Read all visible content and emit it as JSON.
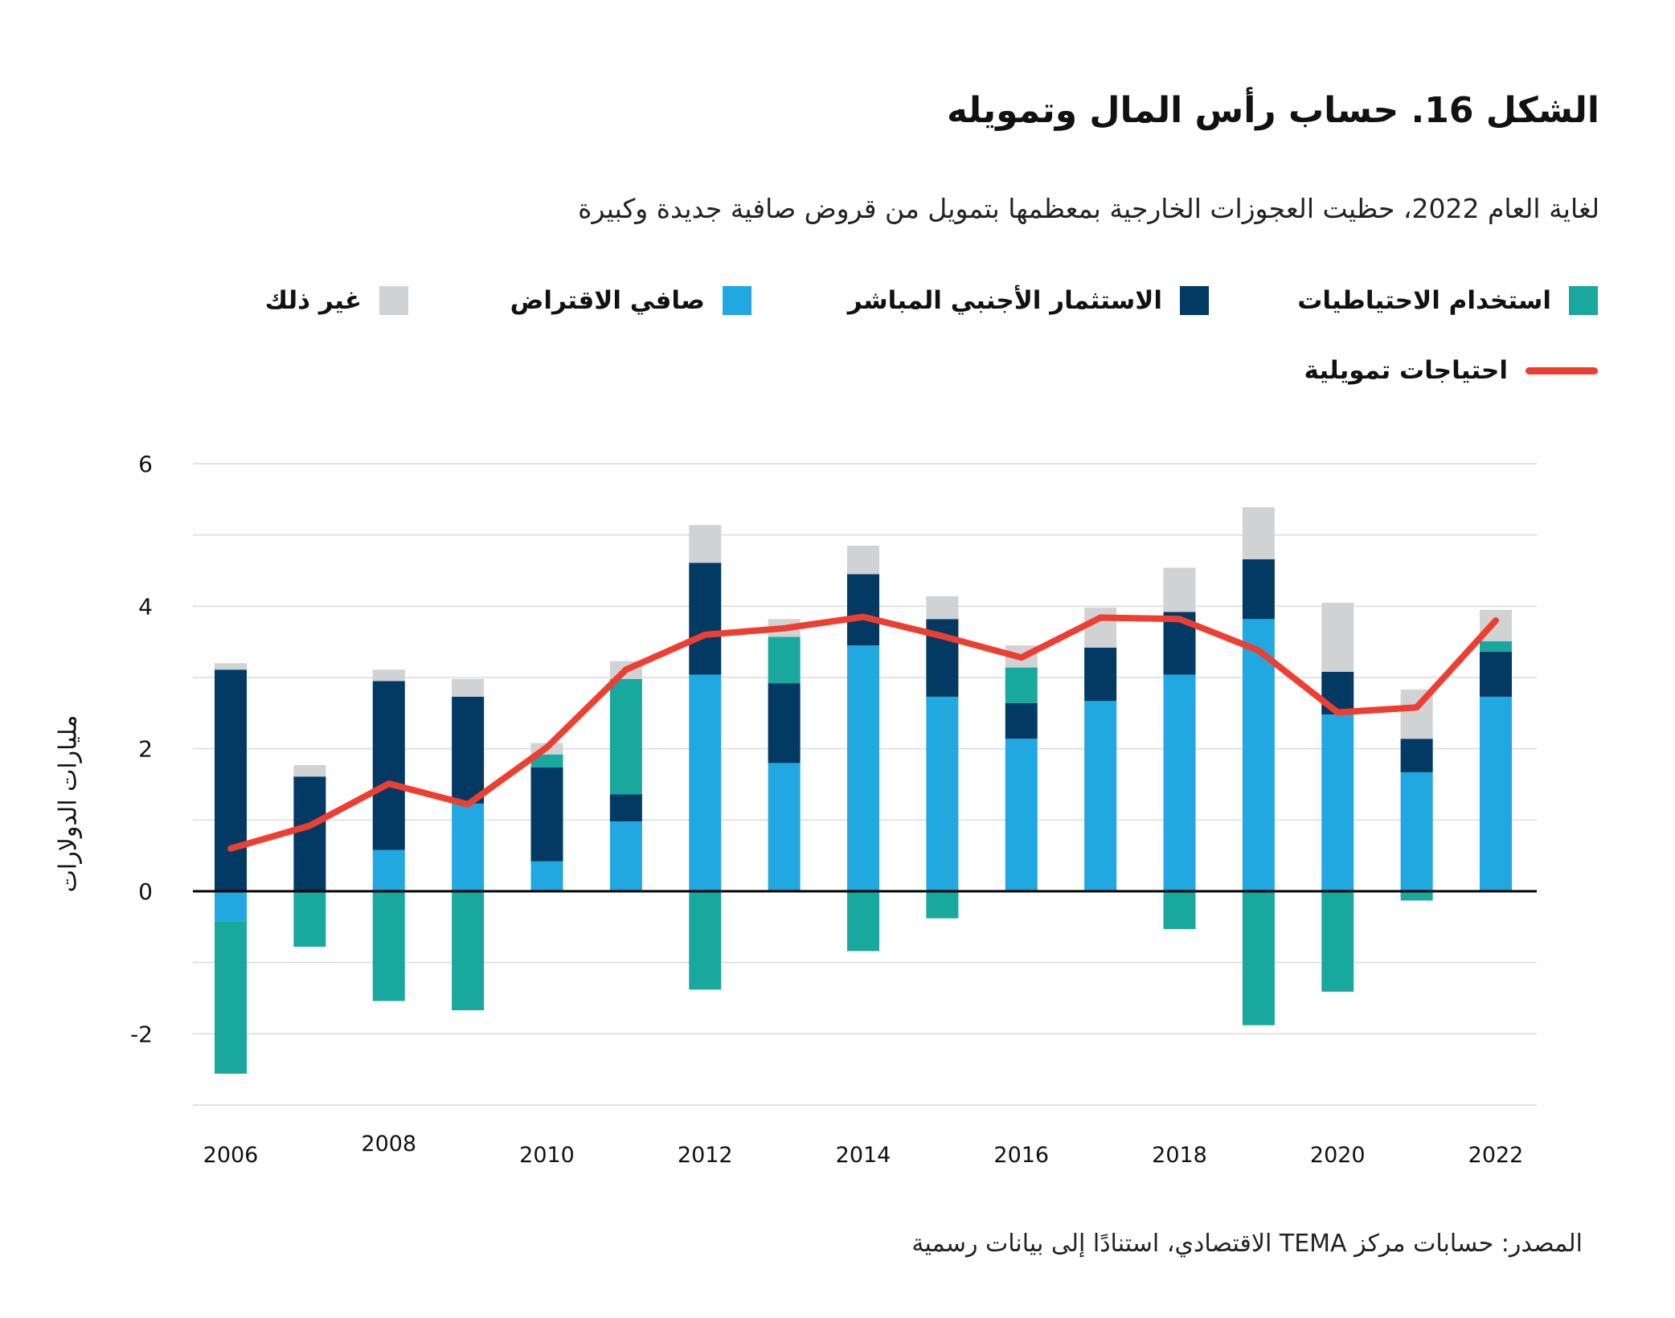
{
  "title": "الشكل 16. حساب رأس المال وتمويله",
  "subtitle": "لغاية العام 2022، حظيت العجوزات الخارجية بمعظمها بتمويل من قروض صافية جديدة وكبيرة",
  "source": "المصدر: حسابات مركز TEMA الاقتصادي، استنادًا إلى بيانات رسمية",
  "chart_data": {
    "type": "bar",
    "stacked": true,
    "title": "الشكل 16. حساب رأس المال وتمويله",
    "ylabel": "مليارات الدولارات",
    "xlabel": "",
    "ylim": [
      -3,
      6
    ],
    "yticks": [
      6,
      4,
      2,
      0,
      -2
    ],
    "grid": true,
    "legend_position": "top",
    "categories": [
      2006,
      2007,
      2008,
      2009,
      2010,
      2011,
      2012,
      2013,
      2014,
      2015,
      2016,
      2017,
      2018,
      2019,
      2020,
      2021,
      2022
    ],
    "xtick_labels": [
      "2006",
      "2008",
      "2010",
      "2012",
      "2014",
      "2016",
      "2018",
      "2020",
      "2022"
    ],
    "series": [
      {
        "name": "صافي الاقتراض",
        "color": "#22a8e0",
        "values": [
          -0.42,
          0,
          0.58,
          1.23,
          0.42,
          0.98,
          3.04,
          1.8,
          3.45,
          2.73,
          2.14,
          2.67,
          3.04,
          3.82,
          2.48,
          1.67,
          2.73
        ]
      },
      {
        "name": "الاستثمار الأجنبي المباشر",
        "color": "#033a63",
        "values": [
          3.11,
          1.61,
          2.37,
          1.5,
          1.32,
          0.38,
          1.57,
          1.12,
          1.0,
          1.09,
          0.5,
          0.75,
          0.88,
          0.84,
          0.6,
          0.47,
          0.63
        ]
      },
      {
        "name": "استخدام الاحتياطيات",
        "color": "#19a89d",
        "values": [
          -2.14,
          -0.78,
          -1.54,
          -1.67,
          0.18,
          1.62,
          -1.38,
          0.65,
          -0.84,
          -0.38,
          0.5,
          0,
          -0.53,
          -1.88,
          -1.41,
          -0.13,
          0.15
        ]
      },
      {
        "name": "غير ذلك",
        "color": "#d1d2d4",
        "values": [
          0.09,
          0.16,
          0.16,
          0.25,
          0.16,
          0.25,
          0.53,
          0.25,
          0.4,
          0.32,
          0.31,
          0.56,
          0.62,
          0.73,
          0.97,
          0.69,
          0.44
        ]
      },
      {
        "name": "احتياجات تمويلية",
        "type": "line",
        "color": "#ee3e32",
        "values": [
          0.6,
          0.92,
          1.51,
          1.22,
          2.02,
          3.11,
          3.6,
          3.69,
          3.85,
          3.58,
          3.28,
          3.84,
          3.82,
          3.38,
          2.51,
          2.58,
          3.8
        ]
      }
    ]
  }
}
